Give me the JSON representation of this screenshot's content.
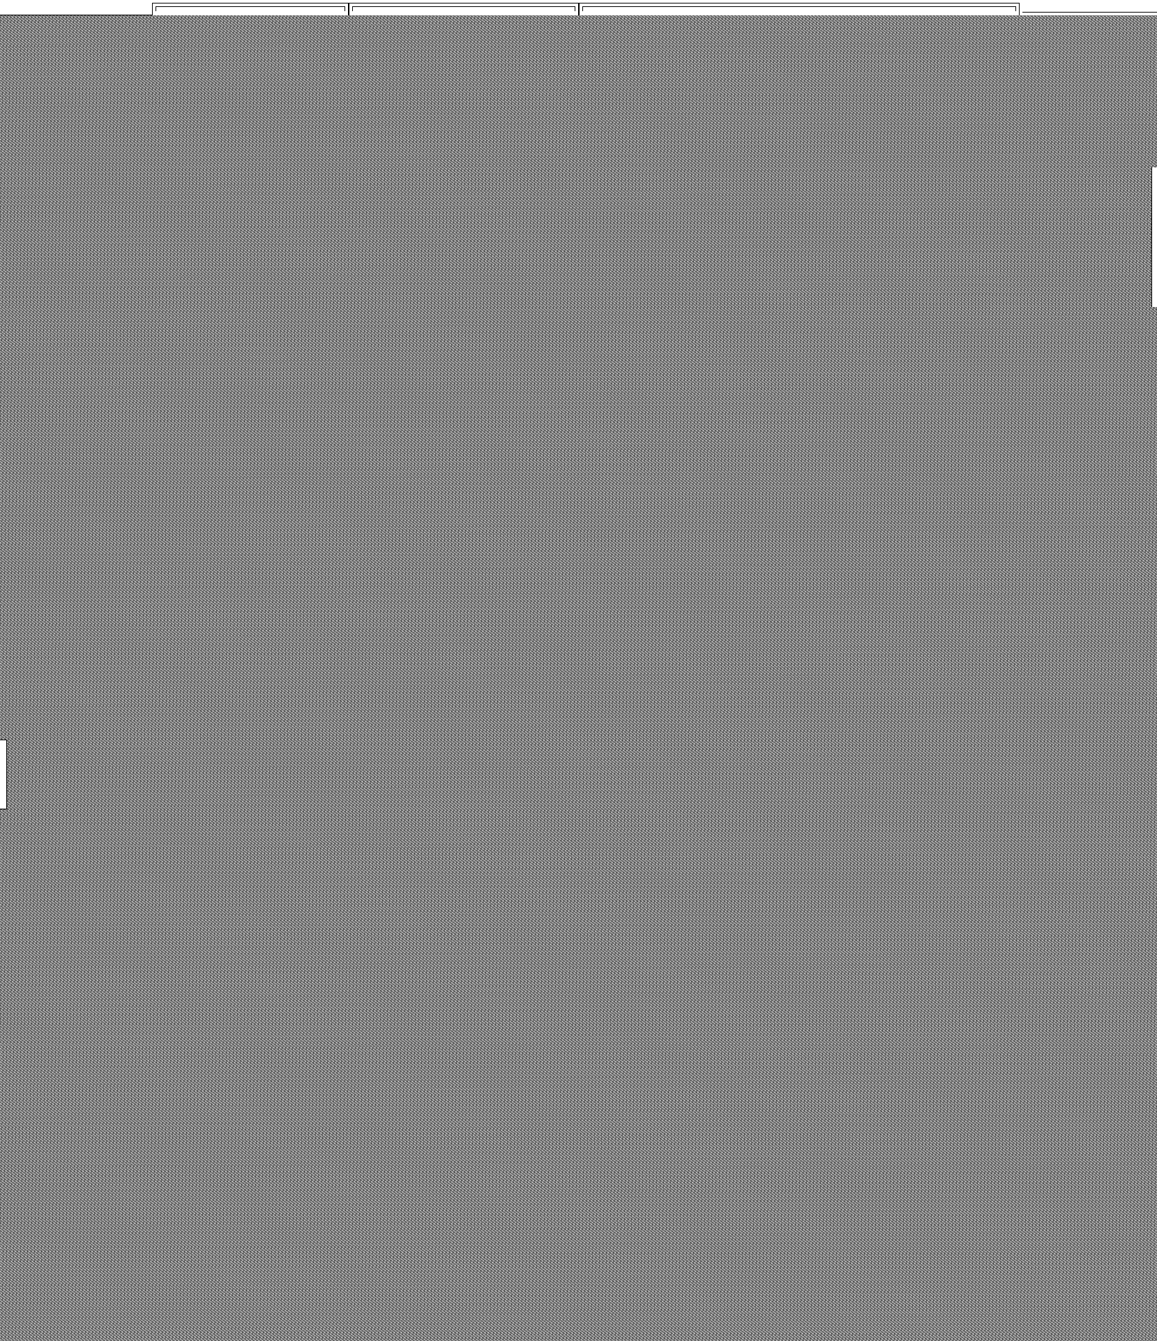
{
  "window": {
    "tabs": [
      {
        "label": ""
      },
      {
        "label": ""
      },
      {
        "label": ""
      }
    ]
  },
  "canvas": {
    "content": "noise"
  }
}
